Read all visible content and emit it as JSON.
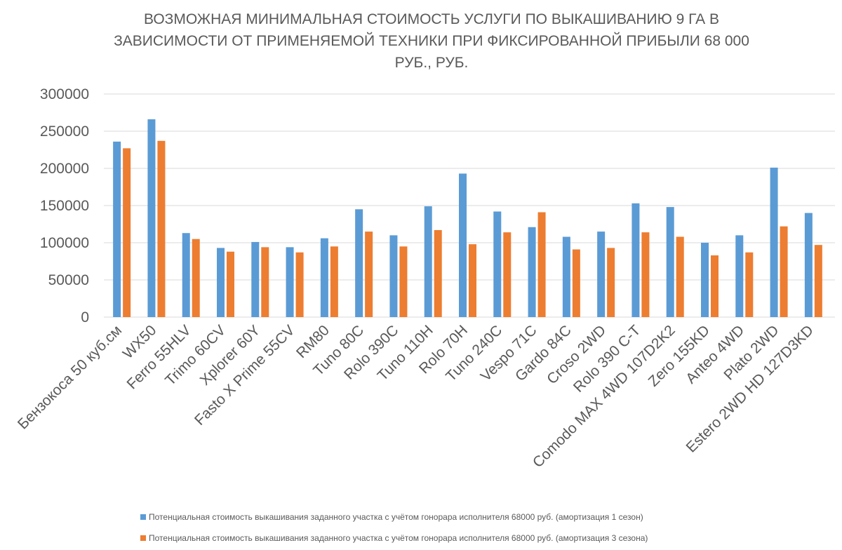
{
  "chart_data": {
    "type": "bar",
    "title": "ВОЗМОЖНАЯ МИНИМАЛЬНАЯ СТОИМОСТЬ УСЛУГИ ПО ВЫКАШИВАНИЮ 9 ГА В ЗАВИСИМОСТИ ОТ ПРИМЕНЯЕМОЙ ТЕХНИКИ ПРИ ФИКСИРОВАННОЙ ПРИБЫЛИ 68 000 РУБ., РУБ.",
    "xlabel": "",
    "ylabel": "",
    "ylim": [
      0,
      300000
    ],
    "yticks": [
      "0",
      "50000",
      "100000",
      "150000",
      "200000",
      "250000",
      "300000"
    ],
    "grid": true,
    "legend_position": "bottom",
    "categories": [
      "Бензокоса 50 куб.см",
      "WX50",
      "Ferro 55HLV",
      "Trimo 60CV",
      "Xplorer 60Y",
      "Fasto X Prime 55CV",
      "RM80",
      "Tuno 80C",
      "Rolo 390C",
      "Tuno 110H",
      "Rolo 70H",
      "Tuno 240C",
      "Vespo 71C",
      "Gardo 84C",
      "Croso 2WD",
      "Rolo 390 C-T",
      "Comodo MAX 4WD 107D2K2",
      "Zero 155KD",
      "Anteo 4WD",
      "Plato 2WD",
      "Estero 2WD HD 127D3KD"
    ],
    "series": [
      {
        "name": "Потенциальная стоимость выкашивания заданного участка с учётом гонорара исполнителя 68000 руб. (амортизация 1 сезон)",
        "color": "#5b9bd5",
        "values": [
          236000,
          266000,
          113000,
          93000,
          101000,
          94000,
          106000,
          145000,
          110000,
          149000,
          193000,
          142000,
          121000,
          108000,
          115000,
          153000,
          148000,
          100000,
          110000,
          201000,
          140000
        ]
      },
      {
        "name": "Потенциальная стоимость выкашивания заданного участка с учётом гонорара исполнителя 68000 руб. (амортизация 3 сезона)",
        "color": "#ed7d31",
        "values": [
          227000,
          237000,
          105000,
          88000,
          94000,
          87000,
          95000,
          115000,
          95000,
          117000,
          98000,
          114000,
          141000,
          91000,
          93000,
          114000,
          108000,
          83000,
          87000,
          122000,
          97000
        ]
      }
    ]
  }
}
